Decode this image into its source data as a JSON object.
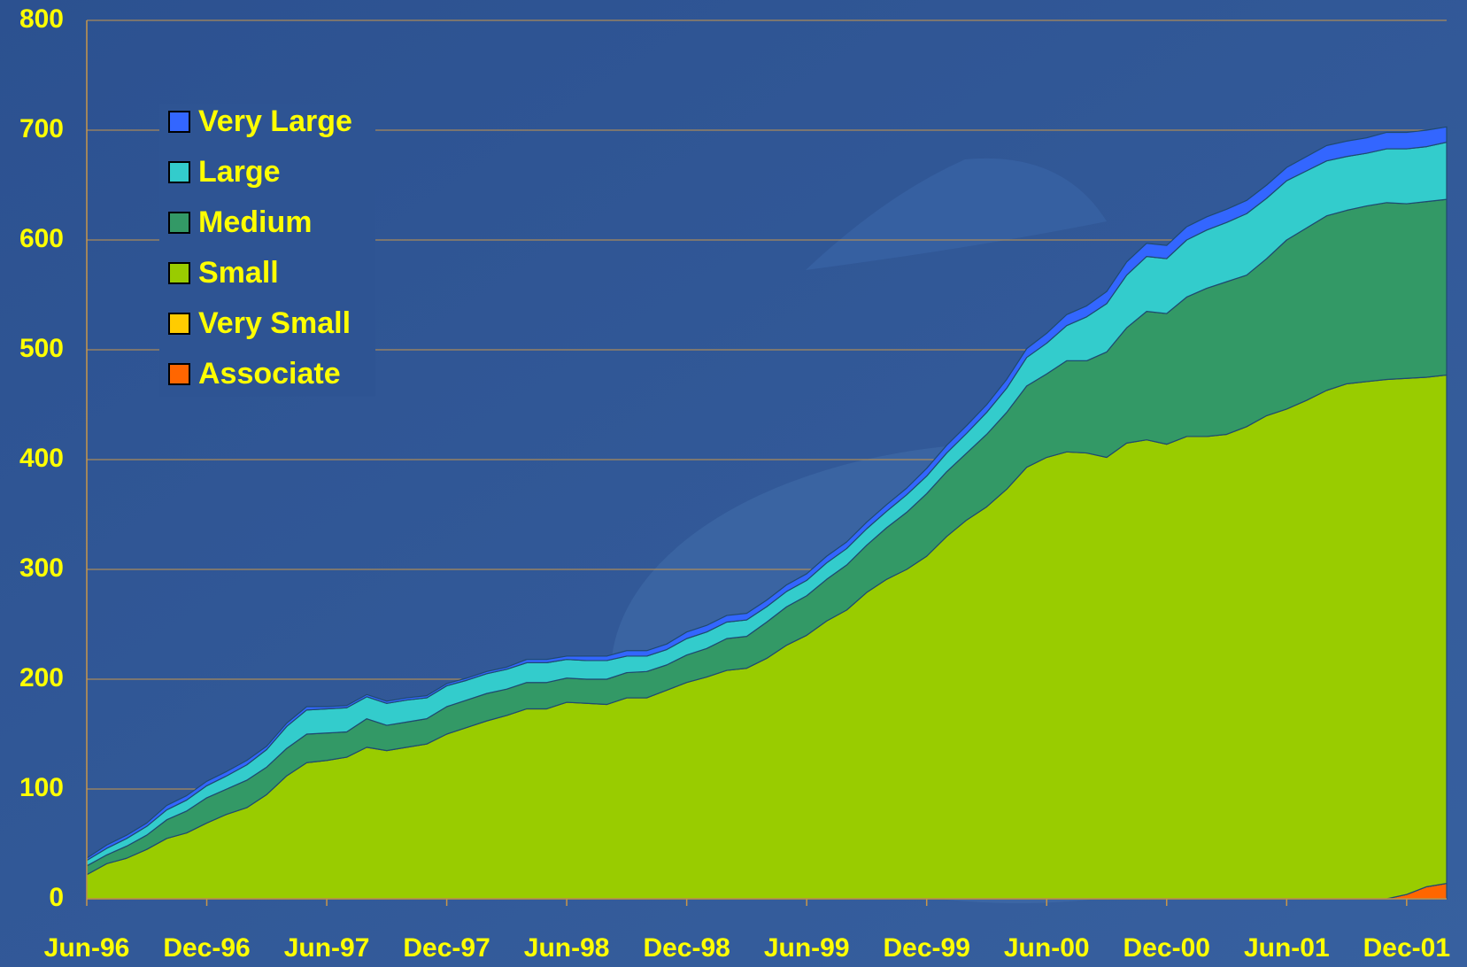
{
  "chart_data": {
    "type": "stacked_area",
    "categories": [
      "Jun-96",
      null,
      null,
      null,
      null,
      null,
      "Dec-96",
      null,
      null,
      null,
      null,
      null,
      "Jun-97",
      null,
      null,
      null,
      null,
      null,
      "Dec-97",
      null,
      null,
      null,
      null,
      null,
      "Jun-98",
      null,
      null,
      null,
      null,
      null,
      "Dec-98",
      null,
      null,
      null,
      null,
      null,
      "Jun-99",
      null,
      null,
      null,
      null,
      null,
      "Dec-99",
      null,
      null,
      null,
      null,
      null,
      "Jun-00",
      null,
      null,
      null,
      null,
      null,
      "Dec-00",
      null,
      null,
      null,
      null,
      null,
      "Jun-01",
      null,
      null,
      null,
      null,
      null,
      "Dec-01",
      null,
      null
    ],
    "series": [
      {
        "name": "Associate",
        "color": "#ff6600",
        "values": [
          0,
          0,
          0,
          0,
          0,
          0,
          0,
          0,
          0,
          0,
          0,
          0,
          0,
          0,
          0,
          0,
          0,
          0,
          0,
          0,
          0,
          0,
          0,
          0,
          0,
          0,
          0,
          0,
          0,
          0,
          0,
          0,
          0,
          0,
          0,
          0,
          0,
          0,
          0,
          0,
          0,
          0,
          0,
          0,
          0,
          0,
          0,
          0,
          0,
          0,
          0,
          0,
          0,
          0,
          0,
          0,
          0,
          0,
          0,
          0,
          0,
          0,
          0,
          0,
          0,
          0,
          4,
          11,
          14
        ]
      },
      {
        "name": "Very Small",
        "color": "#ffcc00",
        "values": [
          0,
          0,
          0,
          0,
          0,
          0,
          0,
          0,
          0,
          0,
          0,
          0,
          0,
          0,
          0,
          0,
          0,
          0,
          0,
          0,
          0,
          0,
          0,
          0,
          0,
          0,
          0,
          0,
          0,
          0,
          0,
          0,
          0,
          0,
          0,
          0,
          0,
          0,
          0,
          0,
          0,
          0,
          0,
          0,
          0,
          0,
          0,
          0,
          0,
          0,
          0,
          0,
          0,
          0,
          0,
          0,
          0,
          0,
          0,
          0,
          0,
          0,
          0,
          0,
          0,
          0,
          0,
          0,
          0
        ]
      },
      {
        "name": "Small",
        "color": "#99cc00",
        "values": [
          22,
          32,
          37,
          45,
          55,
          60,
          69,
          77,
          83,
          95,
          112,
          124,
          126,
          129,
          138,
          135,
          138,
          141,
          150,
          156,
          162,
          167,
          173,
          173,
          179,
          178,
          177,
          183,
          183,
          190,
          197,
          202,
          208,
          210,
          219,
          231,
          240,
          253,
          263,
          279,
          291,
          300,
          312,
          330,
          345,
          357,
          373,
          393,
          402,
          407,
          406,
          402,
          415,
          418,
          414,
          421,
          421,
          423,
          430,
          440,
          446,
          454,
          463,
          469,
          471,
          473,
          470,
          464,
          463
        ]
      },
      {
        "name": "Medium",
        "color": "#339966",
        "values": [
          8,
          8,
          11,
          13,
          17,
          20,
          23,
          23,
          25,
          25,
          25,
          26,
          25,
          23,
          26,
          23,
          23,
          23,
          25,
          25,
          25,
          24,
          24,
          24,
          22,
          22,
          23,
          23,
          24,
          23,
          25,
          26,
          29,
          29,
          33,
          35,
          36,
          38,
          41,
          43,
          47,
          52,
          57,
          59,
          61,
          66,
          70,
          74,
          76,
          83,
          84,
          96,
          105,
          117,
          119,
          127,
          135,
          139,
          138,
          143,
          154,
          157,
          159,
          158,
          160,
          161,
          159,
          160,
          160
        ]
      },
      {
        "name": "Large",
        "color": "#33cccc",
        "values": [
          5,
          6,
          7,
          8,
          9,
          10,
          11,
          12,
          14,
          16,
          20,
          22,
          22,
          22,
          20,
          20,
          20,
          19,
          19,
          18,
          18,
          18,
          18,
          18,
          17,
          17,
          17,
          15,
          14,
          14,
          15,
          15,
          15,
          15,
          14,
          14,
          14,
          15,
          15,
          15,
          15,
          16,
          16,
          17,
          18,
          20,
          22,
          26,
          28,
          32,
          40,
          44,
          48,
          50,
          50,
          52,
          53,
          54,
          56,
          55,
          54,
          52,
          50,
          49,
          48,
          49,
          50,
          50,
          52
        ]
      },
      {
        "name": "Very Large",
        "color": "#3366ff",
        "values": [
          2,
          3,
          3,
          3,
          4,
          4,
          4,
          4,
          4,
          3,
          3,
          3,
          2,
          2,
          2,
          2,
          2,
          2,
          2,
          2,
          2,
          2,
          3,
          3,
          3,
          4,
          4,
          5,
          5,
          5,
          6,
          6,
          6,
          6,
          6,
          6,
          6,
          6,
          6,
          6,
          6,
          6,
          7,
          7,
          7,
          7,
          8,
          8,
          9,
          10,
          10,
          11,
          12,
          12,
          12,
          12,
          12,
          12,
          12,
          12,
          12,
          13,
          14,
          14,
          14,
          15,
          15,
          15,
          14
        ]
      }
    ],
    "ylim": [
      0,
      800
    ],
    "yticks": [
      0,
      100,
      200,
      300,
      400,
      500,
      600,
      700,
      800
    ],
    "grid": true,
    "legend": "upper left"
  }
}
